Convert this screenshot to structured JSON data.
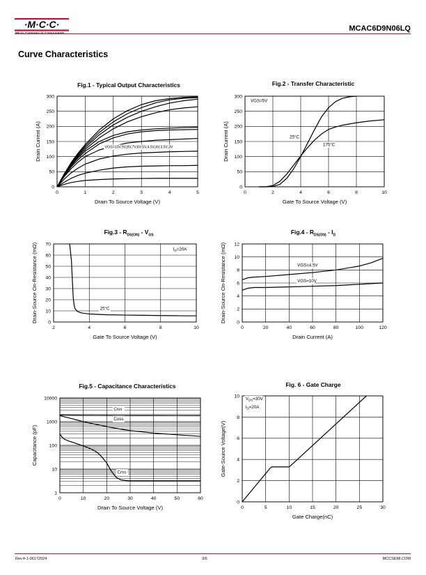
{
  "header": {
    "logo_text": "·M·C·C·",
    "logo_subtext": "Micro Commercial Components",
    "part_number": "MCAC6D9N06LQ",
    "brand_color": "#c8102e"
  },
  "section_title": "Curve Characteristics",
  "footer": {
    "revision": "Rev.4-1-06172024",
    "page": "3/6",
    "website": "MCCSEMI.COM"
  },
  "chart_data": [
    {
      "id": "fig1",
      "type": "line",
      "title": "Fig.1 - Typical Output Characteristics",
      "xlabel": "Drain To Source Voltage (V)",
      "ylabel": "Drain Current (A)",
      "xlim": [
        0,
        5
      ],
      "ylim": [
        0,
        300
      ],
      "xticks": [
        0,
        1,
        2,
        3,
        4,
        5
      ],
      "yticks": [
        0,
        50,
        100,
        150,
        200,
        250,
        300
      ],
      "annotations": [
        {
          "text": "VGS=10V,9V,8V,7V,6V,5V,4.5V,4V,3.5V,3V",
          "x": 1.7,
          "y": 128
        }
      ],
      "series": [
        {
          "name": "10V",
          "x": [
            0,
            0.25,
            0.5,
            0.75,
            1,
            1.5,
            2,
            2.5,
            3,
            3.5,
            4,
            4.5,
            5
          ],
          "y": [
            0,
            42,
            80,
            112,
            140,
            188,
            225,
            252,
            272,
            285,
            292,
            296,
            298
          ]
        },
        {
          "name": "9V",
          "x": [
            0,
            0.25,
            0.5,
            0.75,
            1,
            1.5,
            2,
            2.5,
            3,
            3.5,
            4,
            4.5,
            5
          ],
          "y": [
            0,
            41,
            78,
            108,
            135,
            180,
            215,
            242,
            262,
            278,
            288,
            293,
            295
          ]
        },
        {
          "name": "8V",
          "x": [
            0,
            0.25,
            0.5,
            0.75,
            1,
            1.5,
            2,
            2.5,
            3,
            3.5,
            4,
            4.5,
            5
          ],
          "y": [
            0,
            40,
            75,
            104,
            130,
            172,
            205,
            230,
            250,
            265,
            277,
            285,
            290
          ]
        },
        {
          "name": "7V",
          "x": [
            0,
            0.25,
            0.5,
            0.75,
            1,
            1.5,
            2,
            2.5,
            3,
            3.5,
            4,
            4.5,
            5
          ],
          "y": [
            0,
            39,
            72,
            100,
            124,
            162,
            192,
            215,
            232,
            245,
            255,
            261,
            265
          ]
        },
        {
          "name": "6V",
          "x": [
            0,
            0.25,
            0.5,
            0.75,
            1,
            1.5,
            2,
            2.5,
            3,
            3.5,
            4,
            4.5,
            5
          ],
          "y": [
            0,
            38,
            70,
            96,
            118,
            150,
            170,
            182,
            188,
            192,
            194,
            196,
            197
          ]
        },
        {
          "name": "5V",
          "x": [
            0,
            0.25,
            0.5,
            0.75,
            1,
            1.5,
            2,
            2.5,
            3,
            3.5,
            4,
            4.5,
            5
          ],
          "y": [
            0,
            36,
            66,
            90,
            110,
            142,
            162,
            175,
            182,
            186,
            188,
            189,
            190
          ]
        },
        {
          "name": "4.5V",
          "x": [
            0,
            0.25,
            0.5,
            0.75,
            1,
            1.5,
            2,
            2.5,
            3,
            3.5,
            4,
            4.5,
            5
          ],
          "y": [
            0,
            33,
            60,
            82,
            100,
            122,
            135,
            145,
            150,
            154,
            156,
            158,
            160
          ]
        },
        {
          "name": "4V",
          "x": [
            0,
            0.25,
            0.5,
            0.75,
            1,
            1.5,
            2,
            2.5,
            3,
            3.5,
            4,
            4.5,
            5
          ],
          "y": [
            0,
            25,
            46,
            62,
            75,
            92,
            102,
            108,
            112,
            114,
            116,
            117,
            118
          ]
        },
        {
          "name": "3.5V",
          "x": [
            0,
            0.25,
            0.5,
            0.75,
            1,
            1.5,
            2,
            2.5,
            3,
            3.5,
            4,
            4.5,
            5
          ],
          "y": [
            0,
            15,
            28,
            38,
            45,
            55,
            62,
            66,
            68,
            69,
            70,
            70,
            71
          ]
        },
        {
          "name": "3V",
          "x": [
            0,
            0.25,
            0.5,
            0.75,
            1,
            1.5,
            2,
            2.5,
            3,
            3.5,
            4,
            4.5,
            5
          ],
          "y": [
            0,
            8,
            14,
            18,
            21,
            24,
            26,
            27,
            27.5,
            28,
            28,
            28,
            28
          ]
        }
      ]
    },
    {
      "id": "fig2",
      "type": "line",
      "title": "Fig.2 - Transfer Characteristic",
      "xlabel": "Gate To Source Voltage (V)",
      "ylabel": "Drain Current (A)",
      "xlim": [
        0,
        10
      ],
      "ylim": [
        0,
        300
      ],
      "xticks": [
        0,
        2,
        4,
        6,
        8,
        10
      ],
      "yticks": [
        0,
        50,
        100,
        150,
        200,
        250,
        300
      ],
      "annotations": [
        {
          "text": "VGS=5V",
          "x": 0.4,
          "y": 280
        },
        {
          "text": "25°C",
          "x": 3.2,
          "y": 160
        },
        {
          "text": "175°C",
          "x": 5.6,
          "y": 135
        }
      ],
      "series": [
        {
          "name": "25°C",
          "x": [
            1,
            1.5,
            2,
            2.5,
            3,
            3.5,
            4,
            4.5,
            5,
            5.5,
            6,
            6.5,
            7,
            7.5,
            8
          ],
          "y": [
            0,
            0,
            1,
            8,
            28,
            60,
            100,
            145,
            190,
            232,
            262,
            282,
            293,
            298,
            300
          ]
        },
        {
          "name": "175°C",
          "x": [
            1,
            1.5,
            2,
            2.5,
            3,
            3.5,
            4,
            4.5,
            5,
            5.5,
            6,
            6.5,
            7,
            8,
            9,
            10
          ],
          "y": [
            0,
            0,
            4,
            18,
            42,
            72,
            102,
            130,
            155,
            175,
            190,
            198,
            204,
            212,
            218,
            222
          ]
        }
      ]
    },
    {
      "id": "fig3",
      "type": "line",
      "title": "Fig.3 - R",
      "title_sub1": "DS(ON)",
      "title_mid": " - V",
      "title_sub2": "GS",
      "xlabel": "Gate To Source Voltage (V)",
      "ylabel": "Drain-Source On-Resistance (mΩ)",
      "xlim": [
        2,
        10
      ],
      "ylim": [
        0,
        70
      ],
      "xticks": [
        2,
        4,
        6,
        8,
        10
      ],
      "yticks": [
        0,
        10,
        20,
        30,
        40,
        50,
        60,
        70
      ],
      "annotations": [
        {
          "text": "I",
          "sub": "D",
          "rest": "=20A",
          "x": 8.7,
          "y": 64
        },
        {
          "text": "25°C",
          "x": 4.6,
          "y": 11
        }
      ],
      "series": [
        {
          "name": "25°C",
          "x": [
            2.9,
            3.0,
            3.05,
            3.1,
            3.15,
            3.2,
            3.3,
            3.4,
            3.6,
            4,
            5,
            6,
            7,
            8,
            9,
            10
          ],
          "y": [
            70,
            55,
            38,
            22,
            15,
            12,
            10,
            9,
            8,
            7.2,
            6.5,
            6.2,
            6,
            5.8,
            5.6,
            5.5
          ]
        }
      ]
    },
    {
      "id": "fig4",
      "type": "line",
      "title": "Fig.4 - R",
      "title_sub1": "DS(ON)",
      "title_mid": " - I",
      "title_sub2": "D",
      "xlabel": "Drain Current (A)",
      "ylabel": "Drain-Source On-Resistance (mΩ)",
      "xlim": [
        0,
        120
      ],
      "ylim": [
        0,
        12
      ],
      "xticks": [
        0,
        20,
        40,
        60,
        80,
        100,
        120
      ],
      "yticks": [
        0,
        2,
        4,
        6,
        8,
        10,
        12
      ],
      "annotations": [
        {
          "text": "VGS=4.5V",
          "x": 47,
          "y": 8.5
        },
        {
          "text": "VGS=10V",
          "x": 47,
          "y": 6.1
        }
      ],
      "series": [
        {
          "name": "VGS=4.5V",
          "x": [
            0,
            5,
            10,
            20,
            40,
            60,
            80,
            100,
            110,
            120
          ],
          "y": [
            6.5,
            6.8,
            6.9,
            7.0,
            7.3,
            7.6,
            8.0,
            8.6,
            9.1,
            9.8
          ]
        },
        {
          "name": "VGS=10V",
          "x": [
            0,
            5,
            10,
            20,
            40,
            60,
            80,
            100,
            120
          ],
          "y": [
            4.9,
            5.2,
            5.3,
            5.3,
            5.4,
            5.5,
            5.6,
            5.8,
            6.0
          ]
        }
      ]
    },
    {
      "id": "fig5",
      "type": "line",
      "yscale": "log",
      "title": "Fig.5 - Capacitance Characteristics",
      "xlabel": "Drain To Source Voltage (V)",
      "ylabel": "Capacitance (pF)",
      "xlim": [
        0,
        60
      ],
      "ylim": [
        1,
        10000
      ],
      "xticks": [
        0,
        10,
        20,
        30,
        40,
        50,
        60
      ],
      "yticks": [
        1,
        10,
        100,
        1000,
        10000
      ],
      "yticklabels": [
        "1",
        "10",
        "100",
        "1000",
        "10000"
      ],
      "annotations": [
        {
          "text": "Ciss",
          "x": 23,
          "y": 3000
        },
        {
          "text": "Coss",
          "x": 23,
          "y": 1150
        },
        {
          "text": "Crss",
          "x": 24.5,
          "y": 6.5
        }
      ],
      "series": [
        {
          "name": "Ciss",
          "x": [
            0,
            2,
            5,
            10,
            15,
            20,
            25,
            30,
            40,
            50,
            60
          ],
          "y": [
            1900,
            1880,
            1860,
            1840,
            1830,
            1820,
            1815,
            1810,
            1805,
            1800,
            1795
          ]
        },
        {
          "name": "Coss",
          "x": [
            0,
            2,
            5,
            10,
            15,
            20,
            25,
            30,
            40,
            50,
            60
          ],
          "y": [
            1800,
            1600,
            1350,
            1000,
            780,
            620,
            500,
            420,
            330,
            280,
            240
          ]
        },
        {
          "name": "Crss",
          "x": [
            0,
            1,
            2,
            4,
            6,
            8,
            10,
            12,
            14,
            16,
            18,
            20,
            22,
            24,
            26,
            28,
            30,
            35,
            40,
            50,
            60
          ],
          "y": [
            300,
            220,
            180,
            150,
            130,
            110,
            95,
            80,
            65,
            50,
            32,
            18,
            8,
            4.5,
            3.5,
            3.3,
            3.2,
            3.2,
            3.2,
            3.2,
            3.2
          ]
        }
      ]
    },
    {
      "id": "fig6",
      "type": "line",
      "title": "Fig. 6 - Gate Charge",
      "xlabel": "Gate Charge(nC)",
      "ylabel": "Gate-Source Voltage(V)",
      "xlim": [
        0,
        30
      ],
      "ylim": [
        0,
        10
      ],
      "xticks": [
        0,
        5,
        10,
        15,
        20,
        25,
        30
      ],
      "yticks": [
        0,
        2,
        4,
        6,
        8,
        10
      ],
      "annotations": [
        {
          "text": "V",
          "sub": "DS",
          "rest": "=30V",
          "x": 0.7,
          "y": 9.6
        },
        {
          "text": "I",
          "sub": "D",
          "rest": "=20A",
          "x": 0.7,
          "y": 8.8
        }
      ],
      "series": [
        {
          "name": "Vgs",
          "x": [
            0,
            6,
            6.3,
            10,
            10.3,
            26.5
          ],
          "y": [
            0,
            3.2,
            3.3,
            3.3,
            3.4,
            10
          ]
        }
      ]
    }
  ]
}
